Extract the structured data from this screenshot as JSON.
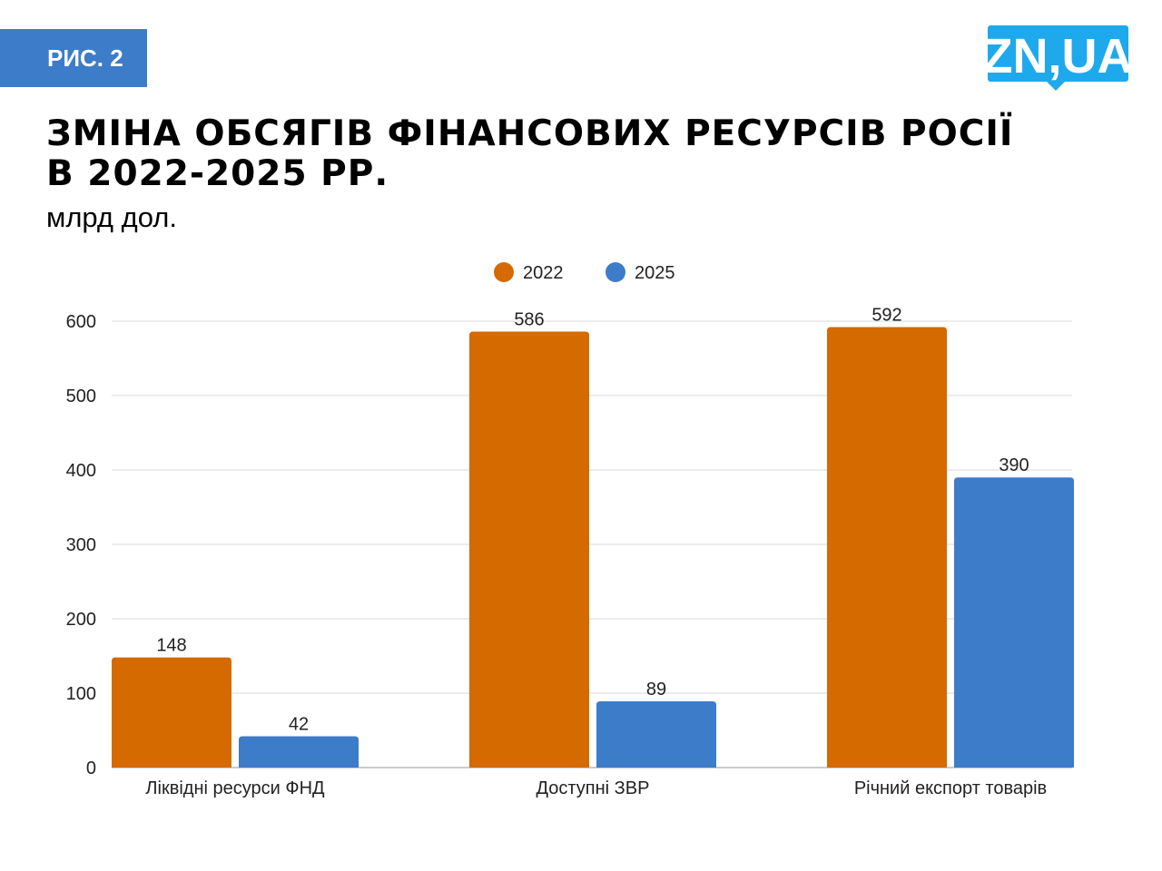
{
  "badge": "РИС. 2",
  "logo_text": "ZN,UA",
  "title_line1": "ЗМІНА ОБСЯГІВ ФІНАНСОВИХ РЕСУРСІВ РОСІЇ",
  "title_line2": "В 2022-2025 РР.",
  "subtitle": "млрд дол.",
  "colors": {
    "badge": "#3d7cc9",
    "logo": "#1ea9ec",
    "series_2022": "#d46a00",
    "series_2025": "#3d7cc9"
  },
  "chart_data": {
    "type": "bar",
    "title": "ЗМІНА ОБСЯГІВ ФІНАНСОВИХ РЕСУРСІВ РОСІЇ В 2022-2025 РР.",
    "ylabel": "млрд дол.",
    "categories": [
      "Ліквідні ресурси ФНД",
      "Доступні ЗВР",
      "Річний експорт товарів"
    ],
    "series": [
      {
        "name": "2022",
        "color": "#d46a00",
        "values": [
          148,
          586,
          592
        ]
      },
      {
        "name": "2025",
        "color": "#3d7cc9",
        "values": [
          42,
          89,
          390
        ]
      }
    ],
    "ylim": [
      0,
      600
    ],
    "yticks": [
      0,
      100,
      200,
      300,
      400,
      500,
      600
    ],
    "grid": true,
    "legend": "top-center",
    "data_labels": true
  }
}
